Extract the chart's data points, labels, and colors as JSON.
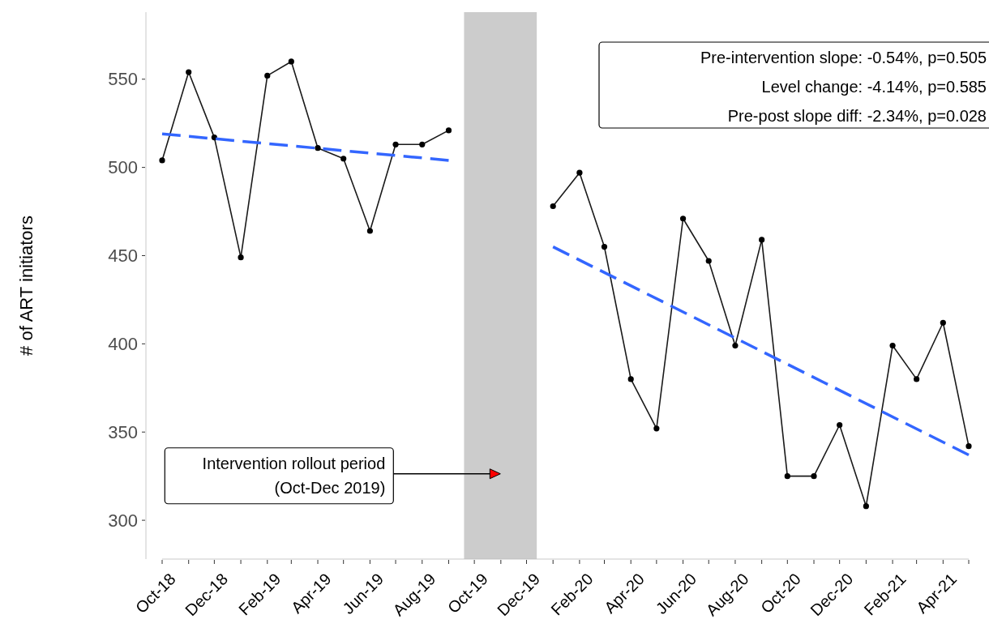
{
  "chart_data": {
    "type": "line",
    "ylabel": "# of ART initiators",
    "x": [
      "2018-10",
      "2018-11",
      "2018-12",
      "2019-01",
      "2019-02",
      "2019-03",
      "2019-04",
      "2019-05",
      "2019-06",
      "2019-07",
      "2019-08",
      "2019-09",
      "2019-10",
      "2019-11",
      "2019-12",
      "2020-01",
      "2020-02",
      "2020-03",
      "2020-04",
      "2020-05",
      "2020-06",
      "2020-07",
      "2020-08",
      "2020-09",
      "2020-10",
      "2020-11",
      "2020-12",
      "2021-01",
      "2021-02",
      "2021-03",
      "2021-04",
      "2021-05"
    ],
    "series": [
      {
        "color": "#1a1a1a",
        "marker": "circle",
        "line_style": "solid",
        "values": [
          504,
          554,
          517,
          449,
          552,
          560,
          511,
          505,
          464,
          513,
          513,
          521,
          null,
          null,
          null,
          478,
          497,
          455,
          380,
          352,
          471,
          447,
          399,
          459,
          325,
          325,
          354,
          308,
          399,
          380,
          412,
          342
        ]
      },
      {
        "type": "line",
        "color": "#3366ff",
        "marker": "none",
        "line_style": "dashed",
        "x": [
          "2018-10",
          "2019-09"
        ],
        "values": [
          519,
          504
        ]
      },
      {
        "type": "line",
        "color": "#3366ff",
        "marker": "none",
        "line_style": "dashed",
        "x": [
          "2020-01",
          "2021-05"
        ],
        "values": [
          455,
          337
        ]
      }
    ],
    "xlim": [
      "2018-10",
      "2021-05"
    ],
    "xticks": [
      {
        "value": "2018-10",
        "label": "Oct-18"
      },
      {
        "value": "2018-11",
        "label": null
      },
      {
        "value": "2018-12",
        "label": "Dec-18"
      },
      {
        "value": "2019-01",
        "label": null
      },
      {
        "value": "2019-02",
        "label": "Feb-19"
      },
      {
        "value": "2019-03",
        "label": null
      },
      {
        "value": "2019-04",
        "label": "Apr-19"
      },
      {
        "value": "2019-05",
        "label": null
      },
      {
        "value": "2019-06",
        "label": "Jun-19"
      },
      {
        "value": "2019-07",
        "label": null
      },
      {
        "value": "2019-08",
        "label": "Aug-19"
      },
      {
        "value": "2019-09",
        "label": null
      },
      {
        "value": "2019-10",
        "label": "Oct-19"
      },
      {
        "value": "2019-11",
        "label": null
      },
      {
        "value": "2019-12",
        "label": "Dec-19"
      },
      {
        "value": "2020-01",
        "label": null
      },
      {
        "value": "2020-02",
        "label": "Feb-20"
      },
      {
        "value": "2020-03",
        "label": null
      },
      {
        "value": "2020-04",
        "label": "Apr-20"
      },
      {
        "value": "2020-05",
        "label": null
      },
      {
        "value": "2020-06",
        "label": "Jun-20"
      },
      {
        "value": "2020-07",
        "label": null
      },
      {
        "value": "2020-08",
        "label": "Aug-20"
      },
      {
        "value": "2020-09",
        "label": null
      },
      {
        "value": "2020-10",
        "label": "Oct-20"
      },
      {
        "value": "2020-11",
        "label": null
      },
      {
        "value": "2020-12",
        "label": "Dec-20"
      },
      {
        "value": "2021-01",
        "label": null
      },
      {
        "value": "2021-02",
        "label": "Feb-21"
      },
      {
        "value": "2021-03",
        "label": null
      },
      {
        "value": "2021-04",
        "label": "Apr-21"
      },
      {
        "value": "2021-05",
        "label": null
      }
    ],
    "ylim": [
      278,
      588
    ],
    "yticks": [
      300,
      350,
      400,
      450,
      500,
      550
    ],
    "bands": [
      {
        "axis": "x",
        "from": "2019-09-19",
        "to": "2019-12-13",
        "color": "#cccccc",
        "label": "Intervention rollout period\n(Oct-Dec 2019)"
      }
    ],
    "annotations": [
      "Pre-intervention slope: -0.54%, p=0.505",
      "Level change: -4.14%, p=0.585",
      "Pre-post slope diff: -2.34%, p=0.028"
    ]
  }
}
